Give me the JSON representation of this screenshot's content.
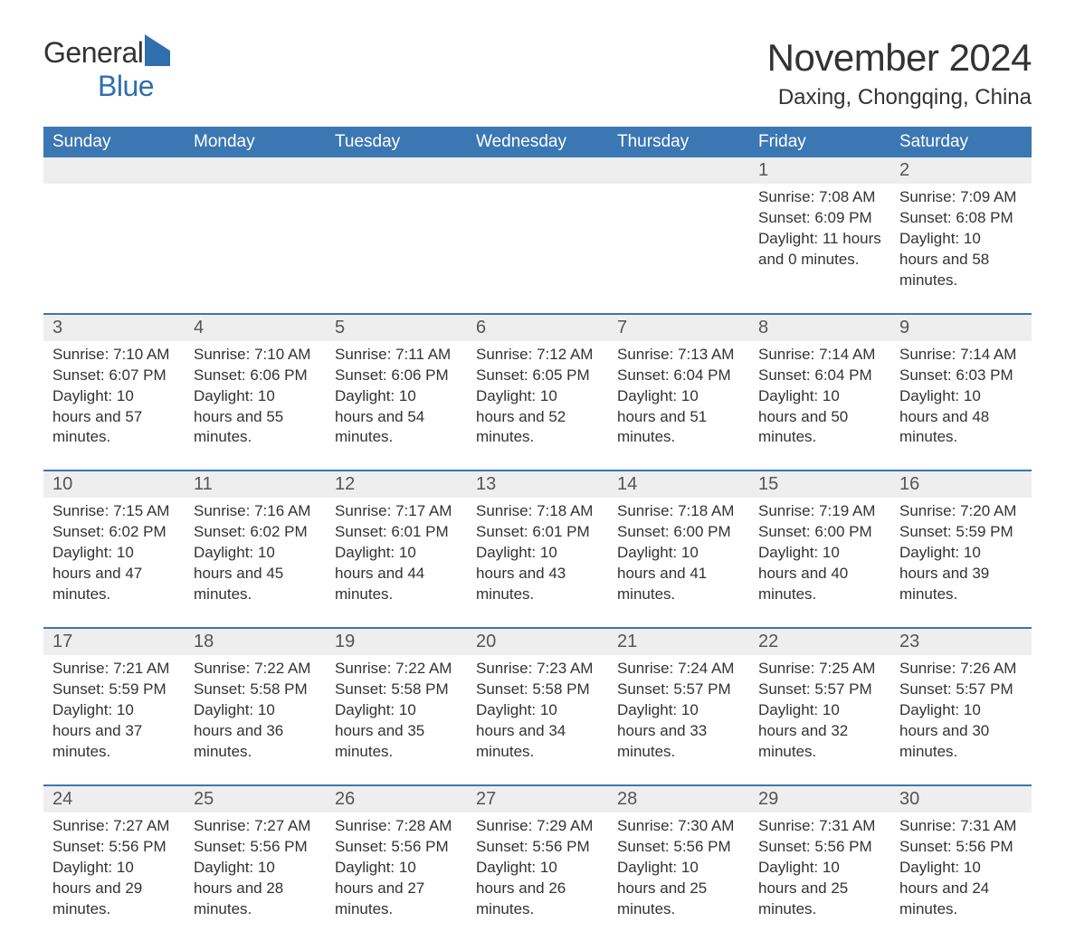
{
  "logo": {
    "word1": "General",
    "word2": "Blue"
  },
  "title": "November 2024",
  "location": "Daxing, Chongqing, China",
  "colors": {
    "header_bg": "#3a77b3",
    "header_text": "#ffffff",
    "daynum_bg": "#eeeeee",
    "text": "#333333",
    "accent": "#2f6fad",
    "week_border": "#3a77b3"
  },
  "days_of_week": [
    "Sunday",
    "Monday",
    "Tuesday",
    "Wednesday",
    "Thursday",
    "Friday",
    "Saturday"
  ],
  "label_sunrise": "Sunrise: ",
  "label_sunset": "Sunset: ",
  "label_daylight": "Daylight: ",
  "weeks": [
    [
      null,
      null,
      null,
      null,
      null,
      {
        "n": "1",
        "sunrise": "7:08 AM",
        "sunset": "6:09 PM",
        "daylight": "11 hours and 0 minutes."
      },
      {
        "n": "2",
        "sunrise": "7:09 AM",
        "sunset": "6:08 PM",
        "daylight": "10 hours and 58 minutes."
      }
    ],
    [
      {
        "n": "3",
        "sunrise": "7:10 AM",
        "sunset": "6:07 PM",
        "daylight": "10 hours and 57 minutes."
      },
      {
        "n": "4",
        "sunrise": "7:10 AM",
        "sunset": "6:06 PM",
        "daylight": "10 hours and 55 minutes."
      },
      {
        "n": "5",
        "sunrise": "7:11 AM",
        "sunset": "6:06 PM",
        "daylight": "10 hours and 54 minutes."
      },
      {
        "n": "6",
        "sunrise": "7:12 AM",
        "sunset": "6:05 PM",
        "daylight": "10 hours and 52 minutes."
      },
      {
        "n": "7",
        "sunrise": "7:13 AM",
        "sunset": "6:04 PM",
        "daylight": "10 hours and 51 minutes."
      },
      {
        "n": "8",
        "sunrise": "7:14 AM",
        "sunset": "6:04 PM",
        "daylight": "10 hours and 50 minutes."
      },
      {
        "n": "9",
        "sunrise": "7:14 AM",
        "sunset": "6:03 PM",
        "daylight": "10 hours and 48 minutes."
      }
    ],
    [
      {
        "n": "10",
        "sunrise": "7:15 AM",
        "sunset": "6:02 PM",
        "daylight": "10 hours and 47 minutes."
      },
      {
        "n": "11",
        "sunrise": "7:16 AM",
        "sunset": "6:02 PM",
        "daylight": "10 hours and 45 minutes."
      },
      {
        "n": "12",
        "sunrise": "7:17 AM",
        "sunset": "6:01 PM",
        "daylight": "10 hours and 44 minutes."
      },
      {
        "n": "13",
        "sunrise": "7:18 AM",
        "sunset": "6:01 PM",
        "daylight": "10 hours and 43 minutes."
      },
      {
        "n": "14",
        "sunrise": "7:18 AM",
        "sunset": "6:00 PM",
        "daylight": "10 hours and 41 minutes."
      },
      {
        "n": "15",
        "sunrise": "7:19 AM",
        "sunset": "6:00 PM",
        "daylight": "10 hours and 40 minutes."
      },
      {
        "n": "16",
        "sunrise": "7:20 AM",
        "sunset": "5:59 PM",
        "daylight": "10 hours and 39 minutes."
      }
    ],
    [
      {
        "n": "17",
        "sunrise": "7:21 AM",
        "sunset": "5:59 PM",
        "daylight": "10 hours and 37 minutes."
      },
      {
        "n": "18",
        "sunrise": "7:22 AM",
        "sunset": "5:58 PM",
        "daylight": "10 hours and 36 minutes."
      },
      {
        "n": "19",
        "sunrise": "7:22 AM",
        "sunset": "5:58 PM",
        "daylight": "10 hours and 35 minutes."
      },
      {
        "n": "20",
        "sunrise": "7:23 AM",
        "sunset": "5:58 PM",
        "daylight": "10 hours and 34 minutes."
      },
      {
        "n": "21",
        "sunrise": "7:24 AM",
        "sunset": "5:57 PM",
        "daylight": "10 hours and 33 minutes."
      },
      {
        "n": "22",
        "sunrise": "7:25 AM",
        "sunset": "5:57 PM",
        "daylight": "10 hours and 32 minutes."
      },
      {
        "n": "23",
        "sunrise": "7:26 AM",
        "sunset": "5:57 PM",
        "daylight": "10 hours and 30 minutes."
      }
    ],
    [
      {
        "n": "24",
        "sunrise": "7:27 AM",
        "sunset": "5:56 PM",
        "daylight": "10 hours and 29 minutes."
      },
      {
        "n": "25",
        "sunrise": "7:27 AM",
        "sunset": "5:56 PM",
        "daylight": "10 hours and 28 minutes."
      },
      {
        "n": "26",
        "sunrise": "7:28 AM",
        "sunset": "5:56 PM",
        "daylight": "10 hours and 27 minutes."
      },
      {
        "n": "27",
        "sunrise": "7:29 AM",
        "sunset": "5:56 PM",
        "daylight": "10 hours and 26 minutes."
      },
      {
        "n": "28",
        "sunrise": "7:30 AM",
        "sunset": "5:56 PM",
        "daylight": "10 hours and 25 minutes."
      },
      {
        "n": "29",
        "sunrise": "7:31 AM",
        "sunset": "5:56 PM",
        "daylight": "10 hours and 25 minutes."
      },
      {
        "n": "30",
        "sunrise": "7:31 AM",
        "sunset": "5:56 PM",
        "daylight": "10 hours and 24 minutes."
      }
    ]
  ]
}
